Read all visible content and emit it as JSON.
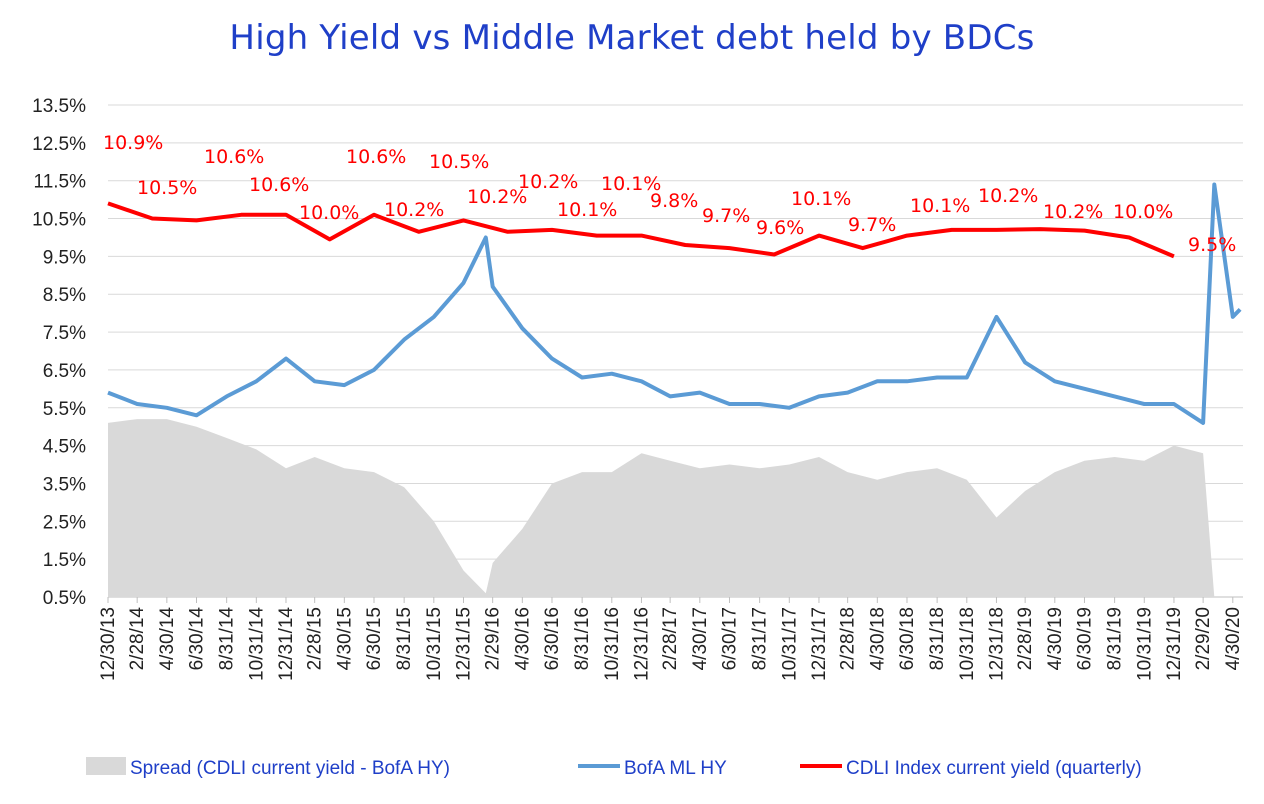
{
  "title": "High Yield  vs  Middle Market debt held by BDCs",
  "colors": {
    "title": "#1f3fc8",
    "spread": "#d9d9d9",
    "hy": "#5b9bd5",
    "cdli": "#ff0000",
    "grid": "#d9d9d9",
    "data_label": "#ff0000",
    "legend_text": "#1f3fc8"
  },
  "chart_data": {
    "type": "line",
    "title": "High Yield  vs  Middle Market debt held by BDCs",
    "xlabel": "",
    "ylabel": "",
    "ylim": [
      0.5,
      13.5
    ],
    "y_ticks": [
      "13.5%",
      "12.5%",
      "11.5%",
      "10.5%",
      "9.5%",
      "8.5%",
      "7.5%",
      "6.5%",
      "5.5%",
      "4.5%",
      "3.5%",
      "2.5%",
      "1.5%",
      "0.5%"
    ],
    "x_ticks": [
      "12/30/13",
      "2/28/14",
      "4/30/14",
      "6/30/14",
      "8/31/14",
      "10/31/14",
      "12/31/14",
      "2/28/15",
      "4/30/15",
      "6/30/15",
      "8/31/15",
      "10/31/15",
      "12/31/15",
      "2/29/16",
      "4/30/16",
      "6/30/16",
      "8/31/16",
      "10/31/16",
      "12/31/16",
      "2/28/17",
      "4/30/17",
      "6/30/17",
      "8/31/17",
      "10/31/17",
      "12/31/17",
      "2/28/18",
      "4/30/18",
      "6/30/18",
      "8/31/18",
      "10/31/18",
      "12/31/18",
      "2/28/19",
      "4/30/19",
      "6/30/19",
      "8/31/19",
      "10/31/19",
      "12/31/19",
      "2/29/20",
      "4/30/20"
    ],
    "grid": true,
    "legend_position": "bottom",
    "series": [
      {
        "name": "Spread (CDLI current yield - BofA HY)",
        "kind": "area",
        "x": [
          "12/30/13",
          "2/28/14",
          "4/30/14",
          "6/30/14",
          "8/31/14",
          "10/31/14",
          "12/31/14",
          "2/28/15",
          "4/30/15",
          "6/30/15",
          "8/31/15",
          "10/31/15",
          "12/31/15",
          "2/15/16",
          "2/29/16",
          "4/30/16",
          "6/30/16",
          "8/31/16",
          "10/31/16",
          "12/31/16",
          "2/28/17",
          "4/30/17",
          "6/30/17",
          "8/31/17",
          "10/31/17",
          "12/31/17",
          "2/28/18",
          "4/30/18",
          "6/30/18",
          "8/31/18",
          "10/31/18",
          "12/31/18",
          "2/28/19",
          "4/30/19",
          "6/30/19",
          "8/31/19",
          "10/31/19",
          "12/31/19",
          "2/29/20",
          "3/23/20",
          "4/30/20",
          "5/15/20"
        ],
        "values": [
          5.1,
          5.2,
          5.2,
          5.0,
          4.7,
          4.4,
          3.9,
          4.2,
          3.9,
          3.8,
          3.4,
          2.5,
          1.2,
          0.6,
          1.4,
          2.3,
          3.5,
          3.8,
          3.8,
          4.3,
          4.1,
          3.9,
          4.0,
          3.9,
          4.0,
          4.2,
          3.8,
          3.6,
          3.8,
          3.9,
          3.6,
          2.6,
          3.3,
          3.8,
          4.1,
          4.2,
          4.1,
          4.5,
          4.3,
          0.5,
          0.5,
          0.5
        ]
      },
      {
        "name": "BofA ML HY",
        "kind": "line",
        "x": [
          "12/30/13",
          "2/28/14",
          "4/30/14",
          "6/30/14",
          "8/31/14",
          "10/31/14",
          "12/31/14",
          "2/28/15",
          "4/30/15",
          "6/30/15",
          "8/31/15",
          "10/31/15",
          "12/31/15",
          "2/15/16",
          "2/29/16",
          "4/30/16",
          "6/30/16",
          "8/31/16",
          "10/31/16",
          "12/31/16",
          "2/28/17",
          "4/30/17",
          "6/30/17",
          "8/31/17",
          "10/31/17",
          "12/31/17",
          "2/28/18",
          "4/30/18",
          "6/30/18",
          "8/31/18",
          "10/31/18",
          "12/31/18",
          "2/28/19",
          "4/30/19",
          "6/30/19",
          "8/31/19",
          "10/31/19",
          "12/31/19",
          "2/29/20",
          "3/23/20",
          "4/30/20",
          "5/15/20"
        ],
        "values": [
          5.9,
          5.6,
          5.5,
          5.3,
          5.8,
          6.2,
          6.8,
          6.2,
          6.1,
          6.5,
          7.3,
          7.9,
          8.8,
          10.0,
          8.7,
          7.6,
          6.8,
          6.3,
          6.4,
          6.2,
          5.8,
          5.9,
          5.6,
          5.6,
          5.5,
          5.8,
          5.9,
          6.2,
          6.2,
          6.3,
          6.3,
          7.9,
          6.7,
          6.2,
          6.0,
          5.8,
          5.6,
          5.6,
          5.1,
          11.4,
          7.9,
          8.1
        ]
      },
      {
        "name": "CDLI Index current yield (quarterly)",
        "kind": "line",
        "x": [
          "12/30/13",
          "3/31/14",
          "6/30/14",
          "9/30/14",
          "12/31/14",
          "3/31/15",
          "6/30/15",
          "9/30/15",
          "12/31/15",
          "3/31/16",
          "6/30/16",
          "9/30/16",
          "12/31/16",
          "3/31/17",
          "6/30/17",
          "9/30/17",
          "12/31/17",
          "3/31/18",
          "6/30/18",
          "9/30/18",
          "12/31/18",
          "3/31/19",
          "6/30/19",
          "9/30/19",
          "12/31/19"
        ],
        "values": [
          10.9,
          10.5,
          10.45,
          10.6,
          10.6,
          9.95,
          10.6,
          10.15,
          10.45,
          10.15,
          10.2,
          10.05,
          10.05,
          9.8,
          9.72,
          9.55,
          10.05,
          9.72,
          10.05,
          10.2,
          10.2,
          10.22,
          10.18,
          10.0,
          9.5
        ],
        "labels": [
          "10.9%",
          "10.5%",
          "10.6%",
          "10.6%",
          "10.0%",
          "10.6%",
          "10.2%",
          "10.5%",
          "10.2%",
          "10.2%",
          "10.1%",
          "10.1%",
          "9.8%",
          "9.7%",
          "9.6%",
          "10.1%",
          "9.7%",
          "10.1%",
          "10.2%",
          "10.2%",
          "10.0%",
          "9.5%"
        ]
      }
    ]
  },
  "legend": {
    "spread": "Spread (CDLI current yield - BofA HY)",
    "hy": "BofA ML HY",
    "cdli": "CDLI Index current yield (quarterly)"
  }
}
